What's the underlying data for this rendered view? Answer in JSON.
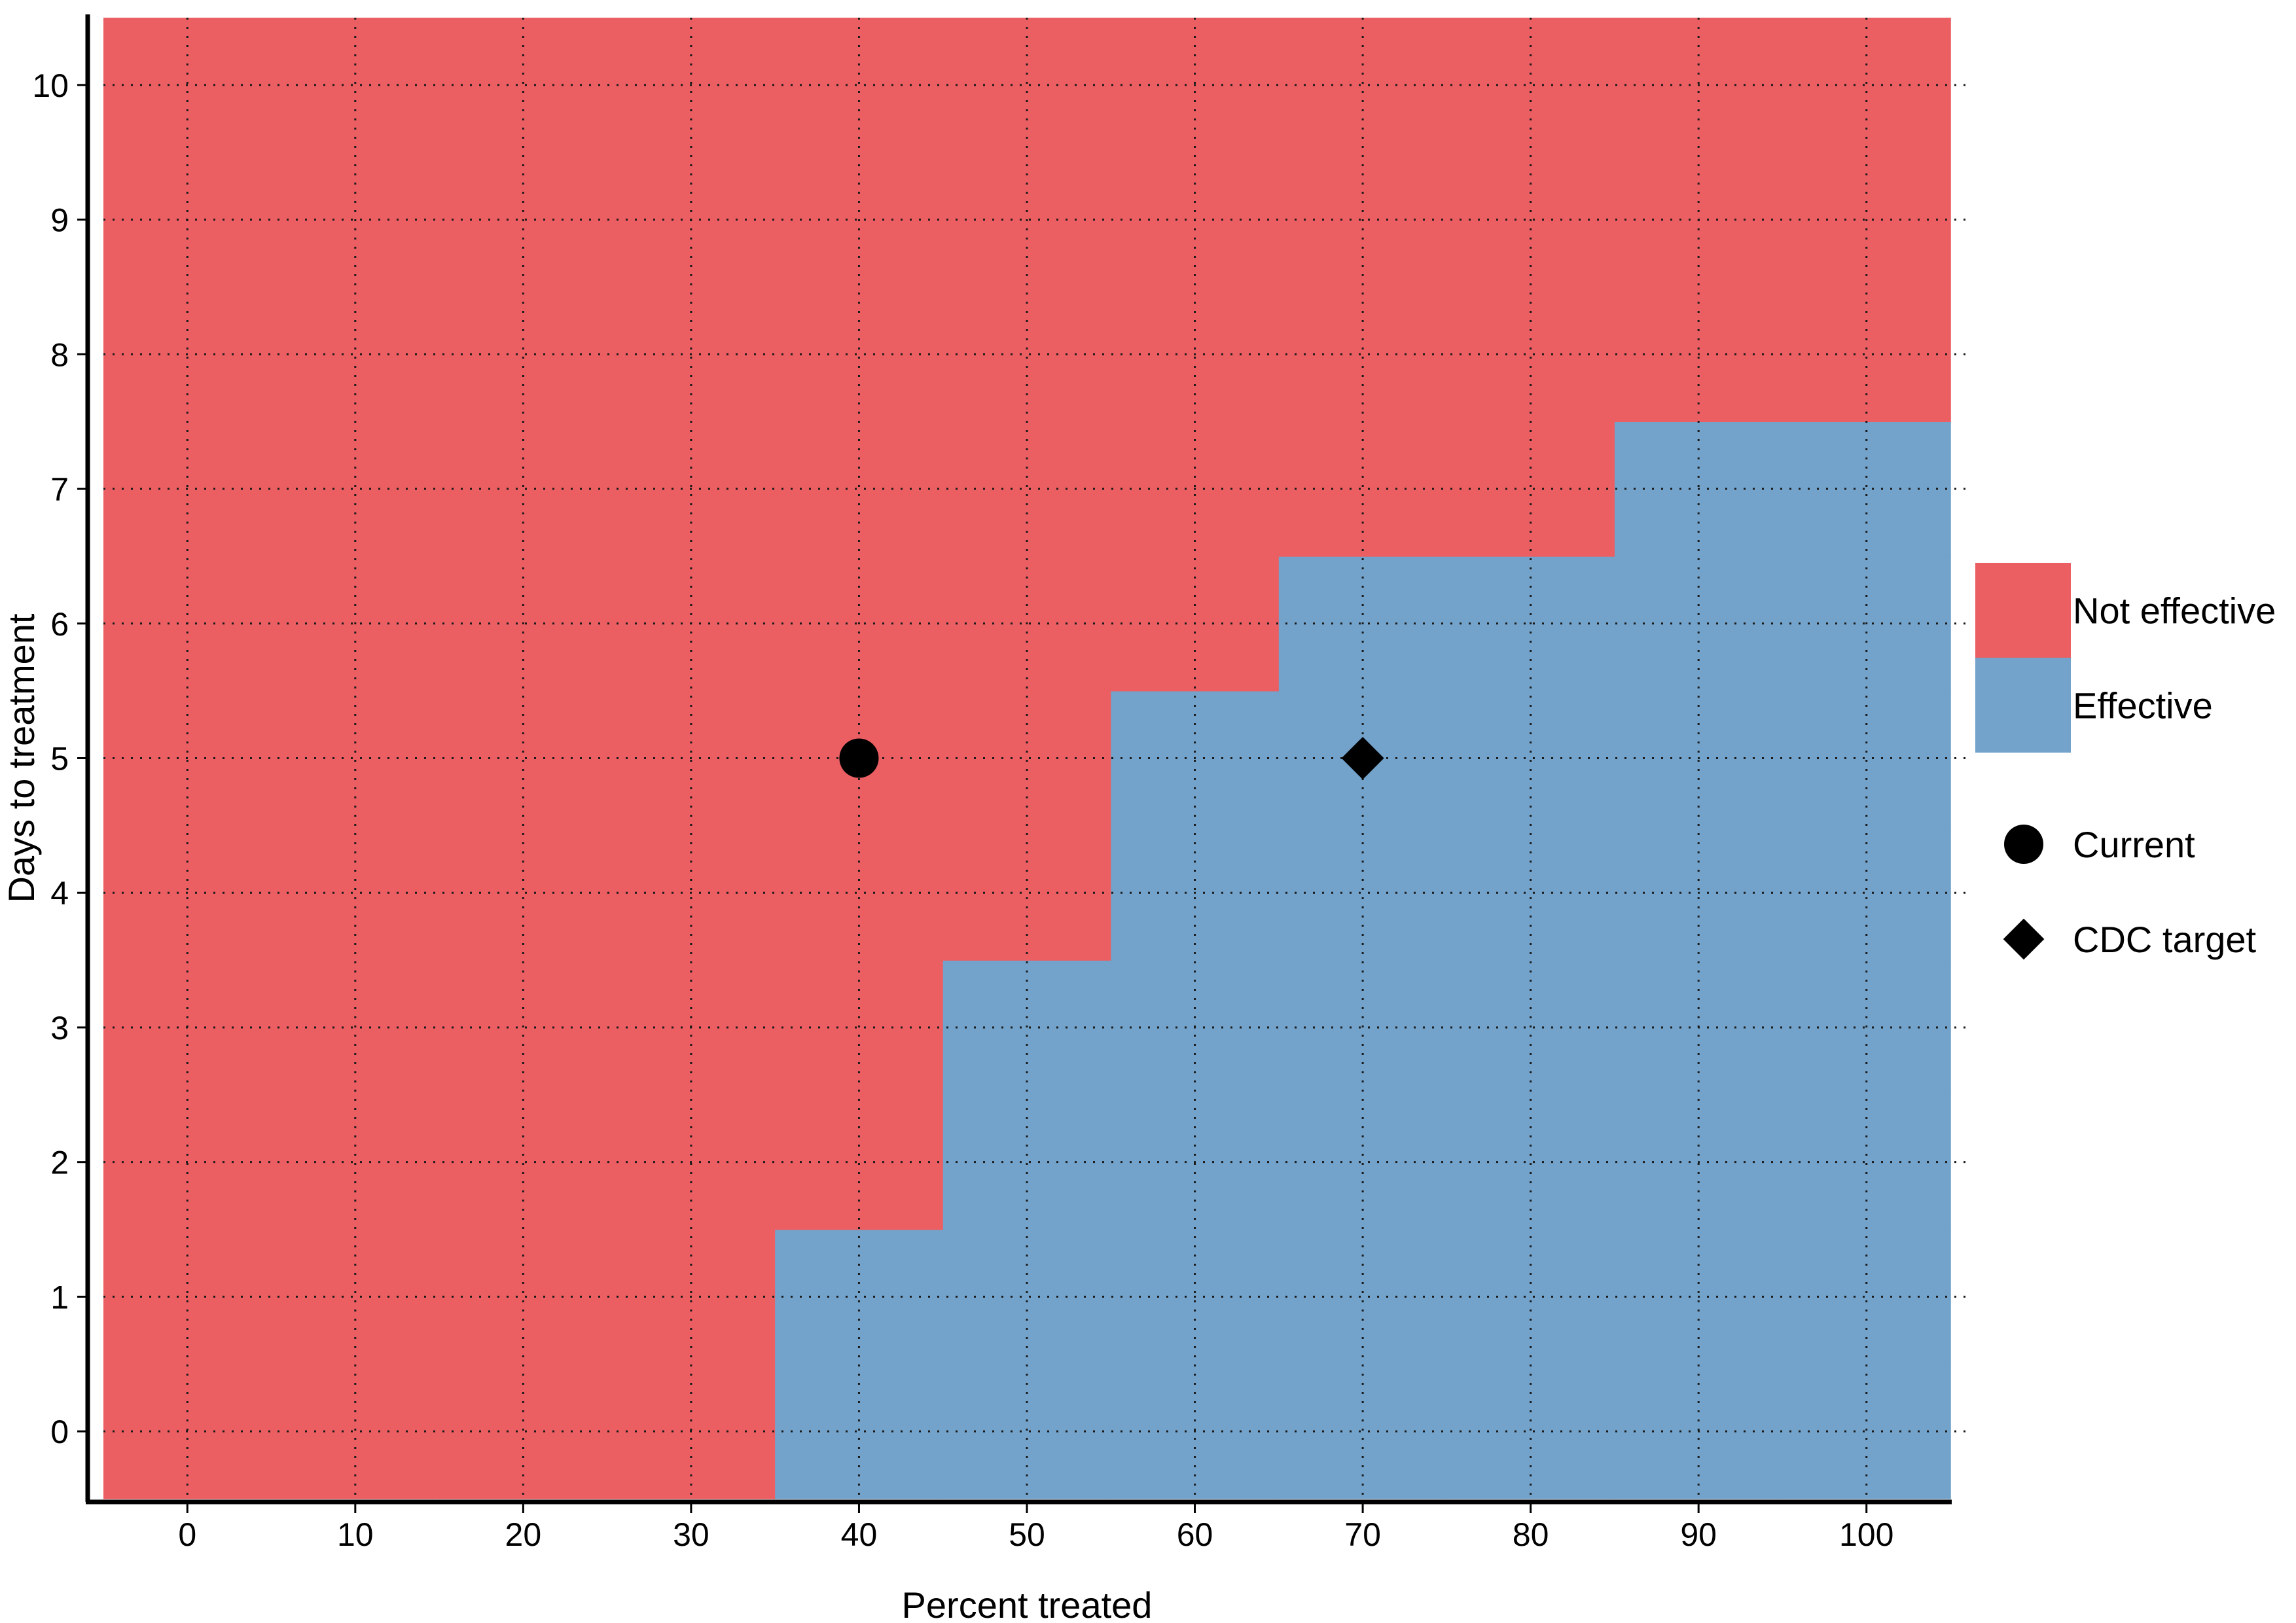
{
  "chart_data": {
    "type": "heatmap",
    "title": "",
    "xlabel": "Percent treated",
    "ylabel": "Days to treatment",
    "x_ticks": [
      0,
      10,
      20,
      30,
      40,
      50,
      60,
      70,
      80,
      90,
      100
    ],
    "y_ticks": [
      0,
      1,
      2,
      3,
      4,
      5,
      6,
      7,
      8,
      9,
      10
    ],
    "xlim": [
      -5,
      105
    ],
    "ylim": [
      -0.5,
      10.5
    ],
    "grid": true,
    "grid_style": "dotted",
    "legend_position": "right",
    "categories": [
      {
        "name": "Not effective",
        "color": "#EB5E62"
      },
      {
        "name": "Effective",
        "color": "#73A3CB"
      }
    ],
    "effective_max_days_by_percent": [
      {
        "percent": 0,
        "max_days": null
      },
      {
        "percent": 10,
        "max_days": null
      },
      {
        "percent": 20,
        "max_days": null
      },
      {
        "percent": 30,
        "max_days": null
      },
      {
        "percent": 40,
        "max_days": 1
      },
      {
        "percent": 50,
        "max_days": 3
      },
      {
        "percent": 60,
        "max_days": 5
      },
      {
        "percent": 70,
        "max_days": 6
      },
      {
        "percent": 80,
        "max_days": 6
      },
      {
        "percent": 90,
        "max_days": 7
      },
      {
        "percent": 100,
        "max_days": 7
      }
    ],
    "points": [
      {
        "name": "Current",
        "x": 40,
        "y": 5,
        "shape": "circle",
        "color": "#000000"
      },
      {
        "name": "CDC target",
        "x": 70,
        "y": 5,
        "shape": "diamond",
        "color": "#000000"
      }
    ]
  }
}
